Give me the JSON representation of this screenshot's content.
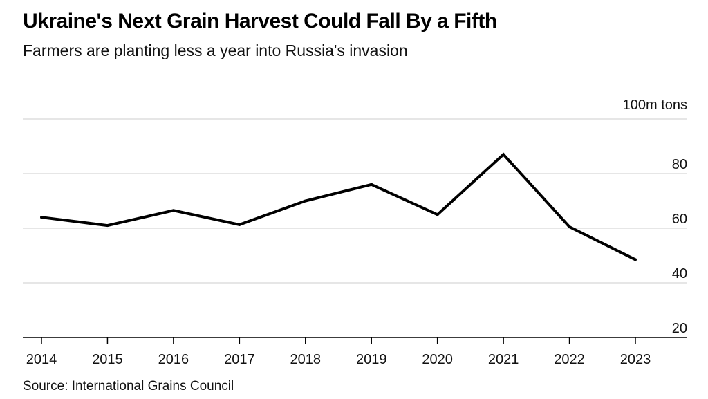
{
  "chart_data": {
    "type": "line",
    "title": "Ukraine's Next Grain Harvest Could Fall By a Fifth",
    "subtitle": "Farmers are planting less a year into Russia's invasion",
    "unit_label": "100m tons",
    "source": "Source: International Grains Council",
    "x": [
      "2014",
      "2015",
      "2016",
      "2017",
      "2018",
      "2019",
      "2020",
      "2021",
      "2022",
      "2023"
    ],
    "series": [
      {
        "values": [
          64,
          61,
          66.5,
          61.3,
          70,
          76,
          65,
          87,
          60.5,
          48.5
        ]
      }
    ],
    "yticks": [
      20,
      40,
      60,
      80
    ],
    "ylim": [
      20,
      100
    ],
    "grid": true,
    "line_color": "#000000",
    "grid_color": "#dddddd"
  }
}
